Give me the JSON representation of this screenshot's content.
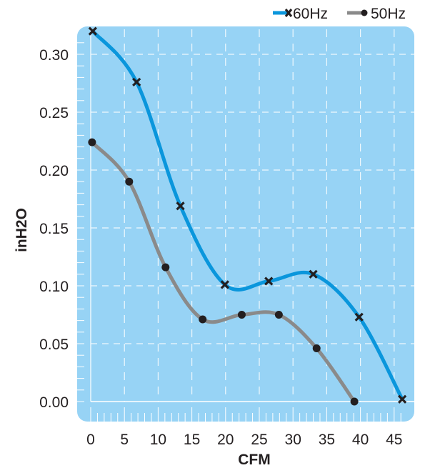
{
  "chart_data": {
    "type": "line",
    "title": "",
    "xlabel": "CFM",
    "ylabel": "inH2O",
    "xlim": [
      0,
      47.5
    ],
    "ylim": [
      0,
      0.325
    ],
    "x_ticks": [
      0,
      5,
      10,
      15,
      20,
      25,
      30,
      35,
      40,
      45
    ],
    "x_tick_labels": [
      "0",
      "5",
      "10",
      "15",
      "20",
      "25",
      "30",
      "35",
      "40",
      "45"
    ],
    "y_ticks": [
      0,
      0.05,
      0.1,
      0.15,
      0.2,
      0.25,
      0.3
    ],
    "y_tick_labels": [
      "0.00",
      "0.05",
      "0.10",
      "0.15",
      "0.20",
      "0.25",
      "0.30"
    ],
    "grid": true,
    "legend_position": "top-right",
    "colors": {
      "plot_background": "#97d3f5",
      "grid": "#ffffff",
      "series_60hz": "#0a96dc",
      "series_50hz": "#8a8a8a",
      "marker": "#231f20",
      "text": "#231f20"
    },
    "series": [
      {
        "name": "60Hz",
        "marker": "x",
        "x": [
          0.3,
          6.8,
          13.3,
          19.9,
          26.4,
          33.0,
          39.8,
          46.2
        ],
        "y": [
          0.32,
          0.276,
          0.169,
          0.101,
          0.104,
          0.11,
          0.073,
          0.002
        ]
      },
      {
        "name": "50Hz",
        "marker": "circle",
        "x": [
          0.2,
          5.7,
          11.1,
          16.6,
          22.4,
          27.9,
          33.5,
          39.1
        ],
        "y": [
          0.224,
          0.19,
          0.116,
          0.071,
          0.075,
          0.075,
          0.046,
          0.0
        ]
      }
    ]
  }
}
